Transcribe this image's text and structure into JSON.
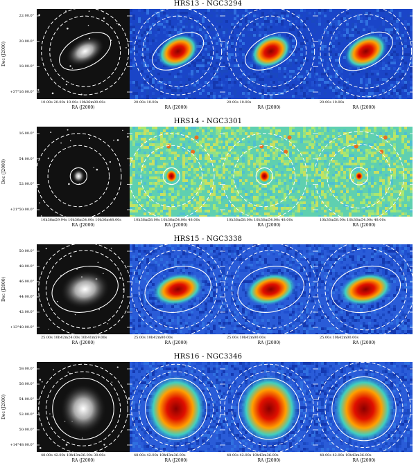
{
  "ylabel": "Dec (J2000)",
  "xlabel": "RA (J2000)",
  "rows": [
    {
      "title": "HRS13 - NGC3294",
      "yticks": [
        "22:00.0\"",
        "20:00.0\"",
        "18:00.0\"",
        "+37°16:00.0\""
      ],
      "xticks": [
        "10.00s 20.00s 10.00s 10h36m00.00s",
        "20.00s 10.00s",
        "20.00s 10.00s",
        "20.00s 10.00s"
      ]
    },
    {
      "title": "HRS14 - NGC3301",
      "yticks": [
        "16:00.0\"",
        "54:00.0\"",
        "52:00.0\"",
        "+21°50:00.0\""
      ],
      "xticks": [
        "10h36m59.94s 10h36m54.00s 10h36m48.00s",
        "10h36m58.00s 10h36m54.00s 48.00s",
        "10h36m58.00s 10h36m54.00s 48.00s",
        "10h36m58.00s 10h36m54.00s 48.00s"
      ]
    },
    {
      "title": "HRS15 - NGC3338",
      "yticks": [
        "50:00.0\"",
        "48:00.0\"",
        "46:00.0\"",
        "44:00.0\"",
        "42:00.0\"",
        "+13°40:00.0\""
      ],
      "xticks": [
        "25.00s 10h42m24.00s 10h41m59.00s",
        "25.00s 10h42m00.00s",
        "25.00s 10h42m00.00s",
        "25.00s 10h42m00.00s"
      ]
    },
    {
      "title": "HRS16 - NGC3346",
      "yticks": [
        "58:00.0\"",
        "56:00.0\"",
        "54:00.0\"",
        "52:00.0\"",
        "50:00.0\"",
        "+14°48:00.0\""
      ],
      "xticks": [
        "48.00s 42.00s 10h43m36.00s 30.00s",
        "48.00s 42.00s 10h43m36.00s",
        "48.00s 42.00s 10h43m36.00s",
        "48.00s 42.00s 10h43m36.00s"
      ]
    }
  ]
}
